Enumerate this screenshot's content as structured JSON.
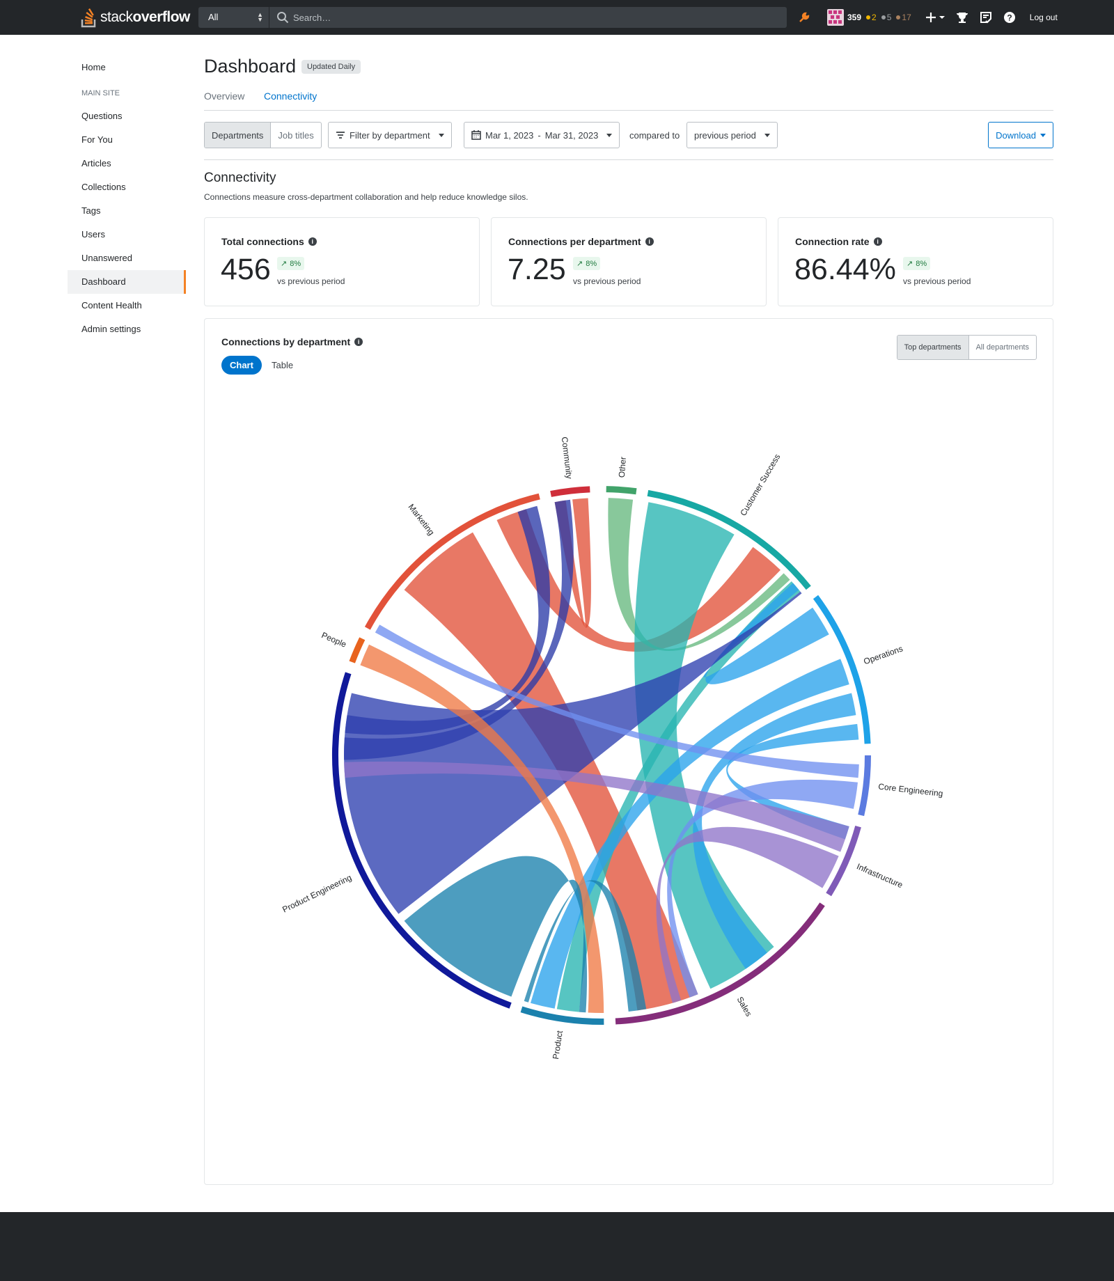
{
  "topbar": {
    "logo_regular": "stack",
    "logo_bold": "overflow",
    "scope": "All",
    "search_placeholder": "Search…",
    "reputation": "359",
    "gold": "2",
    "silver": "5",
    "bronze": "17",
    "logout": "Log out",
    "colors": {
      "gold": "#f1b600",
      "silver": "#9a9da0",
      "bronze": "#ab825f",
      "bar": "#232629",
      "accent": "#f48225"
    }
  },
  "sidebar": {
    "home": "Home",
    "section": "MAIN SITE",
    "items": [
      "Questions",
      "For You",
      "Articles",
      "Collections",
      "Tags",
      "Users",
      "Unanswered",
      "Dashboard",
      "Content Health",
      "Admin settings"
    ]
  },
  "header": {
    "title": "Dashboard",
    "badge": "Updated Daily",
    "tabs": [
      "Overview",
      "Connectivity"
    ]
  },
  "filters": {
    "group_by": [
      "Departments",
      "Job titles"
    ],
    "filter_label": "Filter by department",
    "date_start": "Mar 1, 2023",
    "date_sep": "-",
    "date_end": "Mar 31, 2023",
    "compared_to": "compared to",
    "compare_value": "previous period",
    "download": "Download"
  },
  "section": {
    "title": "Connectivity",
    "description": "Connections measure cross-department collaboration and help reduce knowledge silos."
  },
  "metrics": [
    {
      "label": "Total connections",
      "value": "456",
      "trend": "8%",
      "vs": "vs previous period"
    },
    {
      "label": "Connections per department",
      "value": "7.25",
      "trend": "8%",
      "vs": "vs previous period"
    },
    {
      "label": "Connection rate",
      "value": "86.44%",
      "trend": "8%",
      "vs": "vs previous period"
    }
  ],
  "chart_card": {
    "title": "Connections by department",
    "view_chart": "Chart",
    "view_table": "Table",
    "scope_top": "Top departments",
    "scope_all": "All departments"
  },
  "chart_data": {
    "type": "chord",
    "groups": [
      {
        "name": "Other",
        "color": "#41a36a"
      },
      {
        "name": "Customer Success",
        "color": "#17a8a4"
      },
      {
        "name": "Operations",
        "color": "#1ea2e8"
      },
      {
        "name": "Core Engineering",
        "color": "#5b7be0"
      },
      {
        "name": "Infrastructure",
        "color": "#7f5ab7"
      },
      {
        "name": "Sales",
        "color": "#842d7a"
      },
      {
        "name": "Product",
        "color": "#1b81ad"
      },
      {
        "name": "Product Engineering",
        "color": "#10199a"
      },
      {
        "name": "People",
        "color": "#e8631e"
      },
      {
        "name": "Marketing",
        "color": "#e2523a"
      },
      {
        "name": "Community",
        "color": "#cf2e3a"
      }
    ],
    "arc_degrees": [
      {
        "group": "Other",
        "start": 1,
        "end": 7.5
      },
      {
        "group": "Customer Success",
        "start": 10,
        "end": 51
      },
      {
        "group": "Operations",
        "start": 53.5,
        "end": 87.5
      },
      {
        "group": "Core Engineering",
        "start": 90,
        "end": 103
      },
      {
        "group": "Infrastructure",
        "start": 105.5,
        "end": 121.5
      },
      {
        "group": "Sales",
        "start": 124,
        "end": 177
      },
      {
        "group": "Product",
        "start": 179.5,
        "end": 197.5
      },
      {
        "group": "Product Engineering",
        "start": 200,
        "end": 288
      },
      {
        "group": "People",
        "start": 290.5,
        "end": 296
      },
      {
        "group": "Marketing",
        "start": 298.5,
        "end": 346.5
      },
      {
        "group": "Community",
        "start": 349,
        "end": 357.5
      }
    ],
    "ribbons": [
      {
        "source": "Marketing",
        "target": "Sales",
        "s": [
          310,
          330
        ],
        "t": [
          158,
          172
        ],
        "color": "#e2523a"
      },
      {
        "source": "Marketing",
        "target": "Customer Success",
        "s": [
          336,
          343
        ],
        "t": [
          36,
          44
        ],
        "color": "#e2523a"
      },
      {
        "source": "Community",
        "target": "Other",
        "s": [
          353.5,
          357
        ],
        "t": [
          349.5,
          352
        ],
        "color": "#e2523a"
      },
      {
        "source": "Community",
        "target": "Product Engineering",
        "s": [
          349.5,
          353
        ],
        "t": [
          269,
          274
        ],
        "color": "#2c3ba8"
      },
      {
        "source": "Marketing",
        "target": "Product Engineering",
        "s": [
          341,
          345.5
        ],
        "t": [
          275,
          279
        ],
        "color": "#2c3ba8"
      },
      {
        "source": "Other",
        "target": "Customer Success",
        "s": [
          1.5,
          7
        ],
        "t": [
          45,
          47
        ],
        "color": "#67b97f"
      },
      {
        "source": "Customer Success",
        "target": "Sales",
        "s": [
          10.5,
          31
        ],
        "t": [
          138,
          155
        ],
        "color": "#28b5b1"
      },
      {
        "source": "Customer Success",
        "target": "Product",
        "s": [
          47.5,
          50.5
        ],
        "t": [
          185,
          190
        ],
        "color": "#28b5b1"
      },
      {
        "source": "Operations",
        "target": "Product",
        "s": [
          68,
          74
        ],
        "t": [
          190.5,
          196
        ],
        "color": "#2aa3ec"
      },
      {
        "source": "Operations",
        "target": "Customer Success",
        "s": [
          55,
          62
        ],
        "t": [
          48,
          50
        ],
        "color": "#2aa3ec"
      },
      {
        "source": "Operations",
        "target": "Sales",
        "s": [
          76,
          81
        ],
        "t": [
          140,
          146
        ],
        "color": "#2aa3ec"
      },
      {
        "source": "Operations",
        "target": "Infrastructure",
        "s": [
          83,
          86.5
        ],
        "t": [
          106,
          109
        ],
        "color": "#2aa3ec"
      },
      {
        "source": "Product Engineering",
        "target": "Customer Success",
        "s": [
          232,
          284
        ],
        "t": [
          50.5,
          51
        ],
        "color": "#2e40b0"
      },
      {
        "source": "Core Engineering",
        "target": "Marketing",
        "s": [
          92,
          95
        ],
        "t": [
          298.5,
          300.5
        ],
        "color": "#6f8ff0"
      },
      {
        "source": "Core Engineering",
        "target": "Sales",
        "s": [
          96,
          102
        ],
        "t": [
          158,
          160
        ],
        "color": "#6f8ff0"
      },
      {
        "source": "Infrastructure",
        "target": "Product Engineering",
        "s": [
          106,
          112
        ],
        "t": [
          265,
          268.5
        ],
        "color": "#8f75c9"
      },
      {
        "source": "Infrastructure",
        "target": "Sales",
        "s": [
          113,
          121
        ],
        "t": [
          162,
          164
        ],
        "color": "#8f75c9"
      },
      {
        "source": "People",
        "target": "Product",
        "s": [
          290.5,
          295.5
        ],
        "t": [
          179.5,
          183
        ],
        "color": "#ef7a45"
      },
      {
        "source": "Product Engineering",
        "target": "Product",
        "s": [
          200.5,
          230
        ],
        "t": [
          183.5,
          185
        ],
        "color": "#1b81ad"
      },
      {
        "source": "Product",
        "target": "Sales",
        "s": [
          196.5,
          197.5
        ],
        "t": [
          170,
          174
        ],
        "color": "#1b81ad"
      }
    ]
  }
}
